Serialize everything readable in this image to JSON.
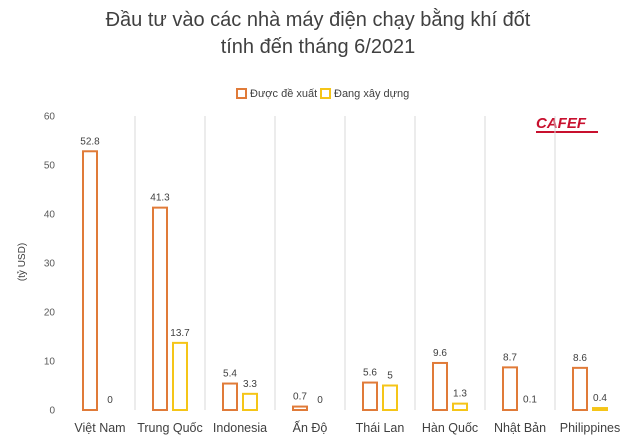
{
  "chart_data": {
    "type": "bar",
    "title_line1": "Đầu tư vào các nhà máy điện chạy bằng khí đốt",
    "title_line2": "tính đến tháng 6/2021",
    "ylabel": "(tỷ USD)",
    "ylim": [
      0,
      60
    ],
    "yticks": [
      0,
      10,
      20,
      30,
      40,
      50,
      60
    ],
    "categories": [
      "Việt Nam",
      "Trung Quốc",
      "Indonesia",
      "Ấn Độ",
      "Thái Lan",
      "Hàn Quốc",
      "Nhật Bản",
      "Philippines"
    ],
    "series": [
      {
        "name": "Được đề xuất",
        "color": "#E07B39",
        "values": [
          52.8,
          41.3,
          5.4,
          0.7,
          5.6,
          9.6,
          8.7,
          8.6
        ]
      },
      {
        "name": "Đang xây dựng",
        "color": "#F5C518",
        "values": [
          0,
          13.7,
          3.3,
          0,
          5,
          1.3,
          0.1,
          0.4
        ]
      }
    ],
    "legend_position": "top",
    "grid": false,
    "vertical_separators": true
  },
  "logo": {
    "text": "CAFEF",
    "color": "#C8102E"
  }
}
